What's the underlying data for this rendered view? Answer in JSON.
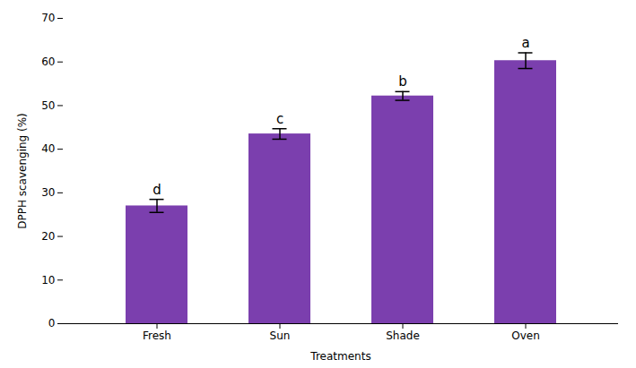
{
  "chart_data": {
    "type": "bar",
    "categories": [
      "Fresh",
      "Sun",
      "Shade",
      "Oven"
    ],
    "values": [
      27.0,
      43.5,
      52.2,
      60.3
    ],
    "errors": [
      1.5,
      1.2,
      1.0,
      1.8
    ],
    "significance_labels": [
      "d",
      "c",
      "b",
      "a"
    ],
    "color": "#7B3FAE",
    "xlabel": "Treatments",
    "ylabel": "DPPH scavenging (%)",
    "ylim": [
      0,
      70
    ],
    "yticks": [
      0,
      10,
      20,
      30,
      40,
      50,
      60,
      70
    ],
    "grid": false
  }
}
